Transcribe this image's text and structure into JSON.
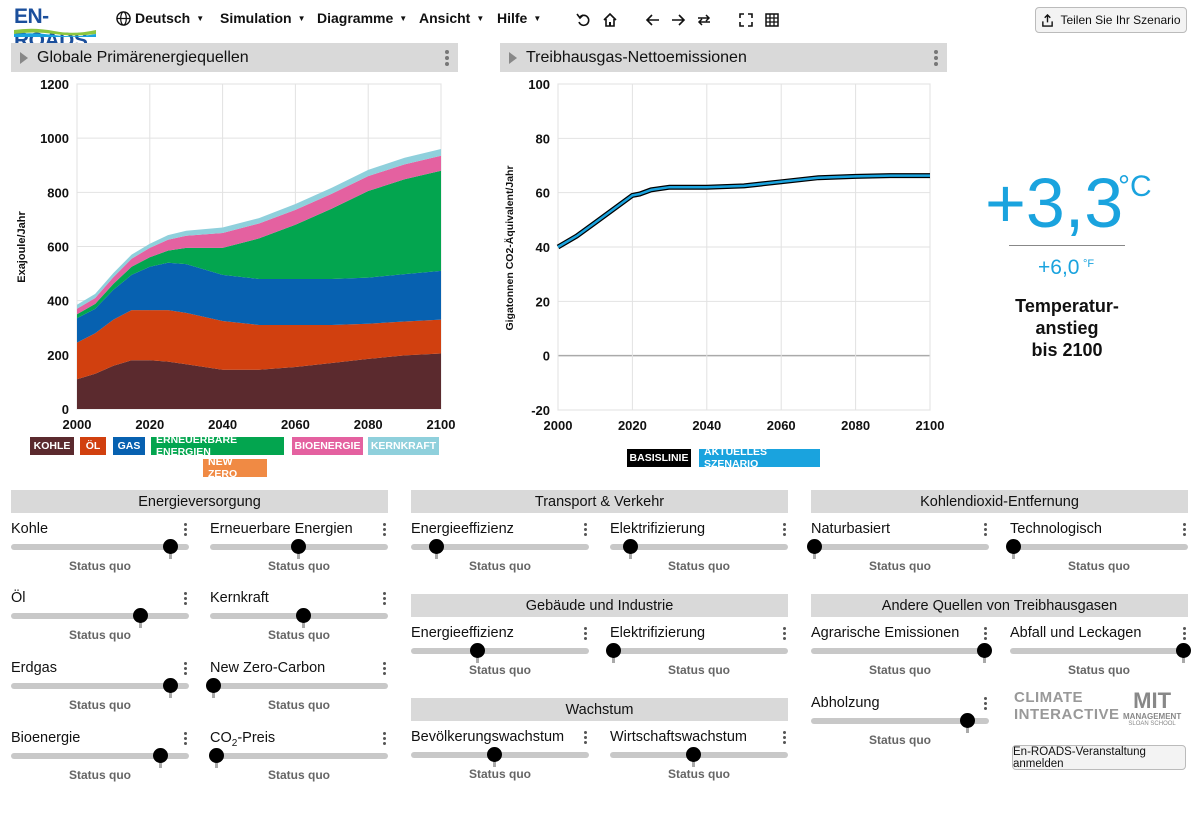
{
  "app": {
    "logo": "EN-ROADS"
  },
  "menu": {
    "language": "Deutsch",
    "simulation": "Simulation",
    "graphs": "Diagramme",
    "view": "Ansicht",
    "help": "Hilfe"
  },
  "toolbar": {
    "share_label": "Teilen Sie Ihr Szenario"
  },
  "left_graph": {
    "title": "Globale Primärenergiequellen",
    "ylabel": "Exajoule/Jahr",
    "yticks": [
      "1200",
      "1000",
      "800",
      "600",
      "400",
      "200",
      "0"
    ],
    "xticks": [
      "2000",
      "2020",
      "2040",
      "2060",
      "2080",
      "2100"
    ],
    "legend": [
      {
        "label": "KOHLE",
        "color": "#5b2a2e"
      },
      {
        "label": "ÖL",
        "color": "#d1400f"
      },
      {
        "label": "GAS",
        "color": "#0761b0"
      },
      {
        "label": "ERNEUERBARE ENERGIEN",
        "color": "#03a54f"
      },
      {
        "label": "BIOENERGIE",
        "color": "#e461a0"
      },
      {
        "label": "KERNKRAFT",
        "color": "#8fd0dc"
      },
      {
        "label": "NEW ZERO",
        "color": "#f08a44"
      }
    ]
  },
  "right_graph": {
    "title": "Treibhausgas-Nettoemissionen",
    "ylabel": "Gigatonnen CO2-Äquivalent/Jahr",
    "yticks": [
      "100",
      "80",
      "60",
      "40",
      "20",
      "0",
      "-20"
    ],
    "xticks": [
      "2000",
      "2020",
      "2040",
      "2060",
      "2080",
      "2100"
    ],
    "legend": [
      {
        "label": "BASISLINIE",
        "color": "#000000"
      },
      {
        "label": "AKTUELLES SZENARIO",
        "color": "#1aa3de"
      }
    ]
  },
  "chart_data": [
    {
      "type": "area",
      "title": "Globale Primärenergiequellen",
      "ylabel": "Exajoule/Jahr",
      "xlim": [
        2000,
        2100
      ],
      "ylim": [
        0,
        1200
      ],
      "x": [
        2000,
        2005,
        2010,
        2015,
        2020,
        2025,
        2030,
        2040,
        2050,
        2060,
        2070,
        2080,
        2090,
        2100
      ],
      "series": [
        {
          "name": "KOHLE",
          "values": [
            110,
            130,
            160,
            180,
            180,
            175,
            165,
            145,
            145,
            155,
            170,
            185,
            198,
            205
          ]
        },
        {
          "name": "ÖL",
          "values": [
            135,
            150,
            170,
            185,
            185,
            190,
            190,
            180,
            165,
            155,
            140,
            130,
            125,
            125
          ]
        },
        {
          "name": "GAS",
          "values": [
            90,
            90,
            110,
            130,
            160,
            175,
            180,
            170,
            170,
            170,
            170,
            170,
            175,
            180
          ]
        },
        {
          "name": "ERNEUERBARE ENERGIEN",
          "values": [
            15,
            18,
            22,
            30,
            35,
            45,
            60,
            100,
            150,
            200,
            260,
            320,
            350,
            370
          ]
        },
        {
          "name": "BIOENERGIE",
          "values": [
            20,
            22,
            25,
            30,
            35,
            40,
            45,
            55,
            55,
            55,
            55,
            55,
            55,
            55
          ]
        },
        {
          "name": "KERNKRAFT",
          "values": [
            15,
            15,
            15,
            15,
            15,
            17,
            18,
            20,
            20,
            22,
            22,
            23,
            25,
            25
          ]
        },
        {
          "name": "NEW ZERO",
          "values": [
            0,
            0,
            0,
            0,
            0,
            0,
            0,
            0,
            0,
            0,
            0,
            0,
            0,
            0
          ]
        }
      ]
    },
    {
      "type": "line",
      "title": "Treibhausgas-Nettoemissionen",
      "ylabel": "Gigatonnen CO2-Äquivalent/Jahr",
      "xlim": [
        2000,
        2100
      ],
      "ylim": [
        -20,
        100
      ],
      "x": [
        2000,
        2005,
        2010,
        2015,
        2020,
        2022,
        2025,
        2030,
        2040,
        2050,
        2060,
        2070,
        2080,
        2090,
        2100
      ],
      "series": [
        {
          "name": "BASISLINIE",
          "values": [
            40,
            44,
            49,
            54,
            59,
            59.5,
            61,
            62,
            62,
            62.5,
            64,
            65.5,
            66,
            66.3,
            66.3
          ]
        },
        {
          "name": "AKTUELLES SZENARIO",
          "values": [
            40,
            44,
            49,
            54,
            59,
            59.5,
            61,
            62,
            62,
            62.5,
            64,
            65.5,
            66,
            66.3,
            66.3
          ]
        }
      ]
    }
  ],
  "temperature": {
    "celsius": "+3,3",
    "celsius_unit": "°C",
    "fahrenheit": "+6,0",
    "fahrenheit_unit": "°F",
    "label_line1": "Temperatur-",
    "label_line2": "anstieg",
    "label_line3": "bis 2100"
  },
  "sections": {
    "energy_supply": "Energieversorgung",
    "transport": "Transport & Verkehr",
    "buildings": "Gebäude und Industrie",
    "growth": "Wachstum",
    "co2_removal": "Kohlendioxid-Entfernung",
    "other_ghg": "Andere Quellen von Treibhausgasen"
  },
  "sliders": {
    "coal": {
      "label": "Kohle",
      "status": "Status quo",
      "value": 0.92
    },
    "renewables": {
      "label": "Erneuerbare Energien",
      "status": "Status quo",
      "value": 0.5
    },
    "oil": {
      "label": "Öl",
      "status": "Status quo",
      "value": 0.74
    },
    "nuclear": {
      "label": "Kernkraft",
      "status": "Status quo",
      "value": 0.53
    },
    "gas": {
      "label": "Erdgas",
      "status": "Status quo",
      "value": 0.92
    },
    "new_zero": {
      "label": "New Zero-Carbon",
      "status": "Status quo",
      "value": 0.0
    },
    "bioenergy": {
      "label": "Bioenergie",
      "status": "Status quo",
      "value": 0.86
    },
    "carbon_price": {
      "label": "CO",
      "label_sub": "2",
      "label_rest": "-Preis",
      "status": "Status quo",
      "value": 0.02
    },
    "transport_efficiency": {
      "label": "Energieeffizienz",
      "status": "Status quo",
      "value": 0.13
    },
    "transport_electrification": {
      "label": "Elektrifizierung",
      "status": "Status quo",
      "value": 0.1
    },
    "buildings_efficiency": {
      "label": "Energieeffizienz",
      "status": "Status quo",
      "value": 0.37
    },
    "buildings_electrification": {
      "label": "Elektrifizierung",
      "status": "Status quo",
      "value": 0.0
    },
    "population_growth": {
      "label": "Bevölkerungswachstum",
      "status": "Status quo",
      "value": 0.47
    },
    "economic_growth": {
      "label": "Wirtschaftswachstum",
      "status": "Status quo",
      "value": 0.47
    },
    "nature_based": {
      "label": "Naturbasiert",
      "status": "Status quo",
      "value": 0.0
    },
    "technological": {
      "label": "Technologisch",
      "status": "Status quo",
      "value": 0.0
    },
    "agricultural": {
      "label": "Agrarische Emissionen",
      "status": "Status quo",
      "value": 1.0
    },
    "waste_leakage": {
      "label": "Abfall und Leckagen",
      "status": "Status quo",
      "value": 1.0
    },
    "deforestation": {
      "label": "Abholzung",
      "status": "Status quo",
      "value": 0.9
    }
  },
  "footer": {
    "ci_logo_line1": "CLIMATE",
    "ci_logo_line2": "INTERACTIVE",
    "mit_logo_line1": "MIT",
    "mit_logo_line2": "MANAGEMENT",
    "mit_logo_line3": "SLOAN SCHOOL",
    "event_button": "En-ROADS-Veranstaltung anmelden"
  }
}
